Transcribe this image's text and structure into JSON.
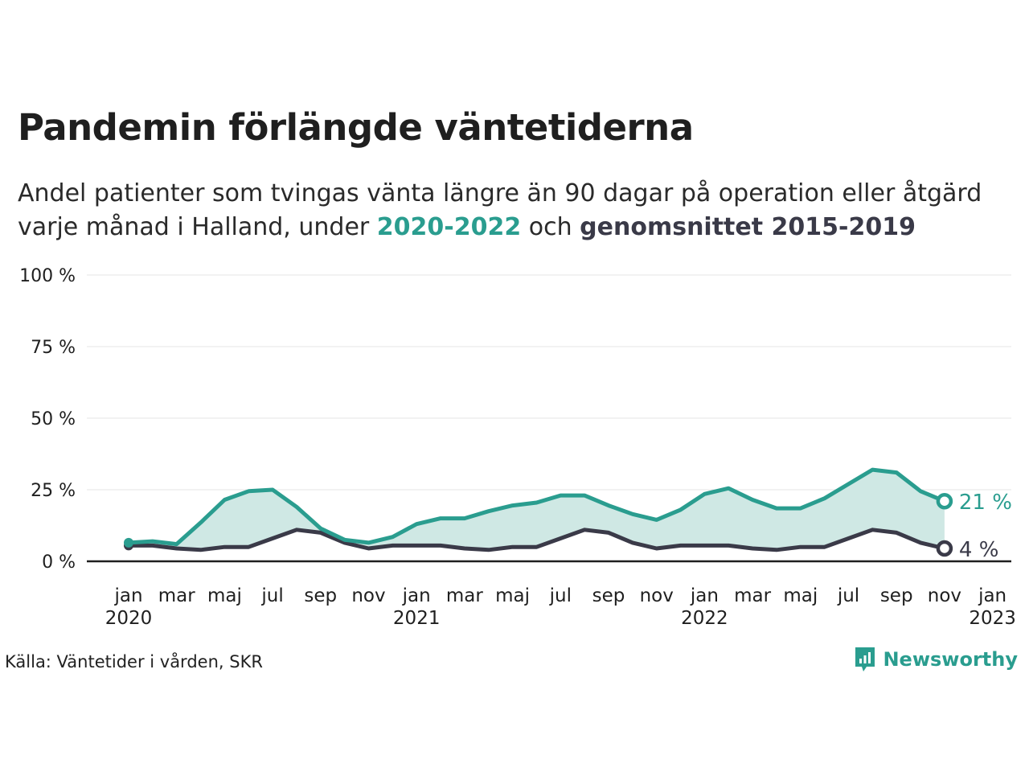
{
  "title": "Pandemin förlängde väntetiderna",
  "subtitle": {
    "line1": "Andel patienter som tvingas vänta längre än 90 dagar på operation eller åtgärd",
    "line2_prefix": "varje månad i Halland, under ",
    "highlight_current": "2020-2022",
    "line2_mid": " och ",
    "highlight_average": "genomsnittet 2015-2019"
  },
  "colors": {
    "current": "#2a9d8f",
    "average": "#3a3a48",
    "fill": "#cfe8e4",
    "grid": "#e6e6e6",
    "axis": "#1f1f1f"
  },
  "chart_data": {
    "type": "area",
    "x": [
      "2020-01",
      "2020-02",
      "2020-03",
      "2020-04",
      "2020-05",
      "2020-06",
      "2020-07",
      "2020-08",
      "2020-09",
      "2020-10",
      "2020-11",
      "2020-12",
      "2021-01",
      "2021-02",
      "2021-03",
      "2021-04",
      "2021-05",
      "2021-06",
      "2021-07",
      "2021-08",
      "2021-09",
      "2021-10",
      "2021-11",
      "2021-12",
      "2022-01",
      "2022-02",
      "2022-03",
      "2022-04",
      "2022-05",
      "2022-06",
      "2022-07",
      "2022-08",
      "2022-09",
      "2022-10",
      "2022-11"
    ],
    "series": [
      {
        "name": "2020-2022",
        "values": [
          6.5,
          7,
          6,
          13.5,
          21.5,
          24.5,
          25,
          19,
          11.5,
          7.5,
          6.5,
          8.5,
          13,
          15,
          15,
          17.5,
          19.5,
          20.5,
          23,
          23,
          19.5,
          16.5,
          14.5,
          18,
          23.5,
          25.5,
          21.5,
          18.5,
          18.5,
          22,
          27,
          32,
          31,
          24.5,
          21
        ]
      },
      {
        "name": "genomsnittet 2015-2019",
        "values": [
          5.5,
          5.5,
          4.5,
          4,
          5,
          5,
          8,
          11,
          10,
          6.5,
          4.5,
          5.5,
          5.5,
          5.5,
          4.5,
          4,
          5,
          5,
          8,
          11,
          10,
          6.5,
          4.5,
          5.5,
          5.5,
          5.5,
          4.5,
          4,
          5,
          5,
          8,
          11,
          10,
          6.5,
          4.5
        ]
      }
    ],
    "end_labels": [
      "21 %",
      "4 %"
    ],
    "ylim": [
      0,
      100
    ],
    "y_ticks": [
      0,
      25,
      50,
      75,
      100
    ],
    "y_tick_labels": [
      "0 %",
      "25 %",
      "50 %",
      "75 %",
      "100 %"
    ],
    "x_ticks": [
      {
        "month": "2020-01",
        "label": "jan",
        "year": "2020"
      },
      {
        "month": "2020-03",
        "label": "mar",
        "year": ""
      },
      {
        "month": "2020-05",
        "label": "maj",
        "year": ""
      },
      {
        "month": "2020-07",
        "label": "jul",
        "year": ""
      },
      {
        "month": "2020-09",
        "label": "sep",
        "year": ""
      },
      {
        "month": "2020-11",
        "label": "nov",
        "year": ""
      },
      {
        "month": "2021-01",
        "label": "jan",
        "year": "2021"
      },
      {
        "month": "2021-03",
        "label": "mar",
        "year": ""
      },
      {
        "month": "2021-05",
        "label": "maj",
        "year": ""
      },
      {
        "month": "2021-07",
        "label": "jul",
        "year": ""
      },
      {
        "month": "2021-09",
        "label": "sep",
        "year": ""
      },
      {
        "month": "2021-11",
        "label": "nov",
        "year": ""
      },
      {
        "month": "2022-01",
        "label": "jan",
        "year": "2022"
      },
      {
        "month": "2022-03",
        "label": "mar",
        "year": ""
      },
      {
        "month": "2022-05",
        "label": "maj",
        "year": ""
      },
      {
        "month": "2022-07",
        "label": "jul",
        "year": ""
      },
      {
        "month": "2022-09",
        "label": "sep",
        "year": ""
      },
      {
        "month": "2022-11",
        "label": "nov",
        "year": ""
      },
      {
        "month": "2023-01",
        "label": "jan",
        "year": "2023"
      }
    ],
    "grid": true
  },
  "source": "Källa: Väntetider i vården, SKR",
  "brand": {
    "name": "Newsworthy",
    "icon": "newsworthy-logo-icon"
  }
}
